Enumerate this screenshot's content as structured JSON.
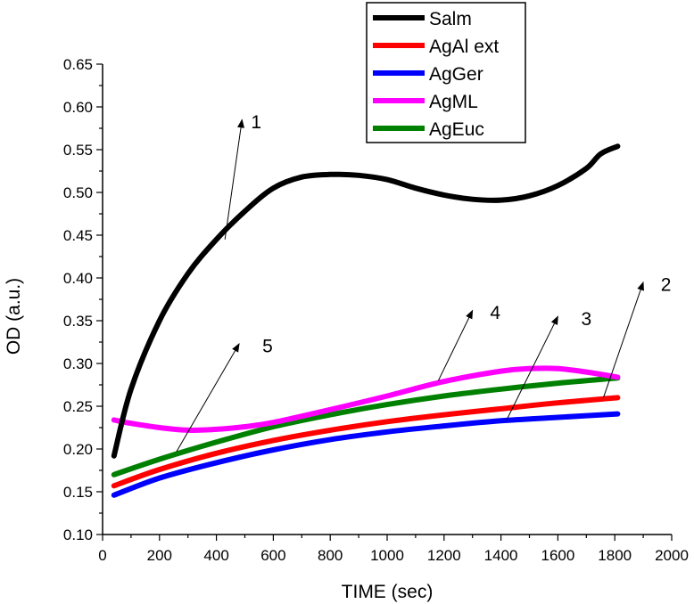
{
  "chart_data": {
    "type": "line",
    "title": "",
    "xlabel": "TIME (sec)",
    "ylabel": "OD (a.u.)",
    "xlim": [
      0,
      2000
    ],
    "ylim": [
      0.1,
      0.65
    ],
    "xticks": [
      0,
      200,
      400,
      600,
      800,
      1000,
      1200,
      1400,
      1600,
      1800,
      2000
    ],
    "yticks": [
      "0.10",
      "0.15",
      "0.20",
      "0.25",
      "0.30",
      "0.35",
      "0.40",
      "0.45",
      "0.50",
      "0.55",
      "0.60",
      "0.65"
    ],
    "legend_position": "top-center",
    "series": [
      {
        "name": "Salm",
        "color": "#000000",
        "points": [
          [
            40,
            0.192
          ],
          [
            100,
            0.27
          ],
          [
            200,
            0.35
          ],
          [
            300,
            0.405
          ],
          [
            400,
            0.445
          ],
          [
            500,
            0.478
          ],
          [
            600,
            0.505
          ],
          [
            700,
            0.518
          ],
          [
            800,
            0.521
          ],
          [
            900,
            0.52
          ],
          [
            1000,
            0.515
          ],
          [
            1100,
            0.505
          ],
          [
            1200,
            0.497
          ],
          [
            1300,
            0.492
          ],
          [
            1400,
            0.491
          ],
          [
            1500,
            0.496
          ],
          [
            1600,
            0.508
          ],
          [
            1700,
            0.528
          ],
          [
            1750,
            0.545
          ],
          [
            1810,
            0.554
          ]
        ]
      },
      {
        "name": "AgAl ext",
        "color": "#ff0000",
        "points": [
          [
            40,
            0.157
          ],
          [
            200,
            0.176
          ],
          [
            400,
            0.195
          ],
          [
            600,
            0.21
          ],
          [
            800,
            0.222
          ],
          [
            1000,
            0.232
          ],
          [
            1200,
            0.24
          ],
          [
            1400,
            0.247
          ],
          [
            1600,
            0.254
          ],
          [
            1810,
            0.26
          ]
        ]
      },
      {
        "name": "AgGer",
        "color": "#0000ff",
        "points": [
          [
            40,
            0.146
          ],
          [
            200,
            0.166
          ],
          [
            400,
            0.184
          ],
          [
            600,
            0.199
          ],
          [
            800,
            0.211
          ],
          [
            1000,
            0.22
          ],
          [
            1200,
            0.227
          ],
          [
            1400,
            0.233
          ],
          [
            1600,
            0.237
          ],
          [
            1810,
            0.241
          ]
        ]
      },
      {
        "name": "AgML",
        "color": "#ff00ff",
        "points": [
          [
            40,
            0.234
          ],
          [
            100,
            0.23
          ],
          [
            200,
            0.225
          ],
          [
            300,
            0.222
          ],
          [
            400,
            0.223
          ],
          [
            500,
            0.226
          ],
          [
            600,
            0.231
          ],
          [
            800,
            0.246
          ],
          [
            1000,
            0.262
          ],
          [
            1200,
            0.279
          ],
          [
            1400,
            0.291
          ],
          [
            1500,
            0.294
          ],
          [
            1600,
            0.294
          ],
          [
            1700,
            0.29
          ],
          [
            1810,
            0.284
          ]
        ]
      },
      {
        "name": "AgEuc",
        "color": "#008000",
        "points": [
          [
            40,
            0.17
          ],
          [
            200,
            0.188
          ],
          [
            400,
            0.208
          ],
          [
            600,
            0.226
          ],
          [
            800,
            0.24
          ],
          [
            1000,
            0.252
          ],
          [
            1200,
            0.262
          ],
          [
            1400,
            0.27
          ],
          [
            1600,
            0.277
          ],
          [
            1810,
            0.283
          ]
        ]
      }
    ],
    "annotations": [
      {
        "label": "1",
        "from": [
          430,
          0.445
        ],
        "to": [
          490,
          0.585
        ],
        "text_at": [
          540,
          0.575
        ]
      },
      {
        "label": "2",
        "from": [
          1760,
          0.26
        ],
        "to": [
          1900,
          0.395
        ],
        "text_at": [
          1980,
          0.385
        ]
      },
      {
        "label": "3",
        "from": [
          1420,
          0.234
        ],
        "to": [
          1600,
          0.355
        ],
        "text_at": [
          1700,
          0.345
        ]
      },
      {
        "label": "4",
        "from": [
          1180,
          0.28
        ],
        "to": [
          1300,
          0.362
        ],
        "text_at": [
          1380,
          0.352
        ]
      },
      {
        "label": "5",
        "from": [
          260,
          0.197
        ],
        "to": [
          480,
          0.323
        ],
        "text_at": [
          580,
          0.313
        ]
      }
    ]
  }
}
